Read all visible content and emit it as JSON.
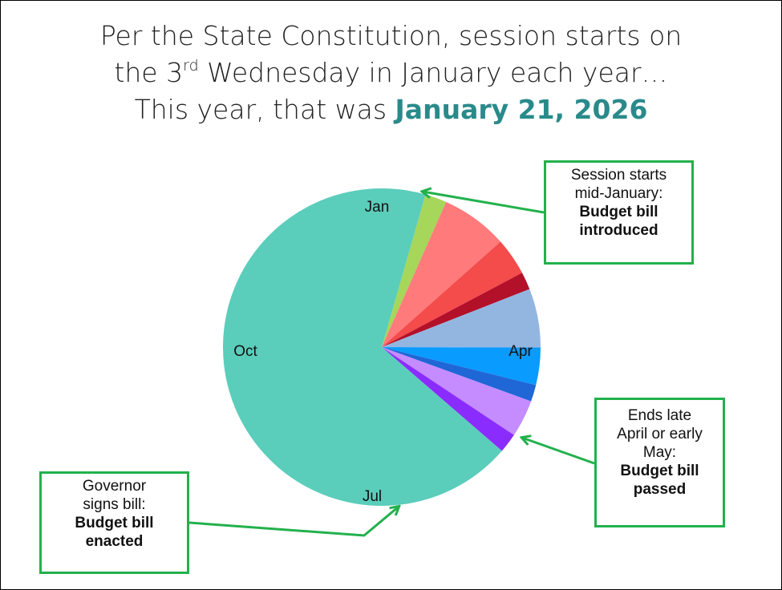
{
  "title": {
    "line1": "Per the State Constitution, session starts on",
    "line2_pre": "the 3",
    "line2_sup": "rd",
    "line2_post": " Wednesday in January each year…",
    "line3_pre": "This year, that was ",
    "line3_date": "January 21, 2026"
  },
  "chart_data": {
    "type": "pie",
    "title": "",
    "start": "Jan",
    "direction": "clockwise",
    "slices": [
      {
        "value": 0.022,
        "color": "#a6d65a"
      },
      {
        "value": 0.068,
        "color": "#ff7a7a"
      },
      {
        "value": 0.038,
        "color": "#f44b4b"
      },
      {
        "value": 0.018,
        "color": "#b3102a"
      },
      {
        "value": 0.06,
        "color": "#93b6e0"
      },
      {
        "value": 0.038,
        "color": "#0a9bff"
      },
      {
        "value": 0.017,
        "color": "#1f66d6"
      },
      {
        "value": 0.038,
        "color": "#c48cff"
      },
      {
        "value": 0.02,
        "color": "#8b2cff"
      },
      {
        "value": 0.681,
        "color": "#5bcdbb"
      }
    ],
    "month_labels": [
      "Jan",
      "Apr",
      "Jul",
      "Oct"
    ]
  },
  "callouts": {
    "start": {
      "line1": "Session starts",
      "line2": "mid-January:",
      "bold1": "Budget bill",
      "bold2": "introduced"
    },
    "end": {
      "line1": "Ends late",
      "line2": "April or early",
      "line3": "May:",
      "bold1": "Budget bill",
      "bold2": "passed"
    },
    "signed": {
      "line1": "Governor",
      "line2": "signs bill:",
      "bold1": "Budget bill",
      "bold2": "enacted"
    }
  },
  "colors": {
    "arrow": "#22b14c",
    "accent": "#2a8a8a"
  }
}
